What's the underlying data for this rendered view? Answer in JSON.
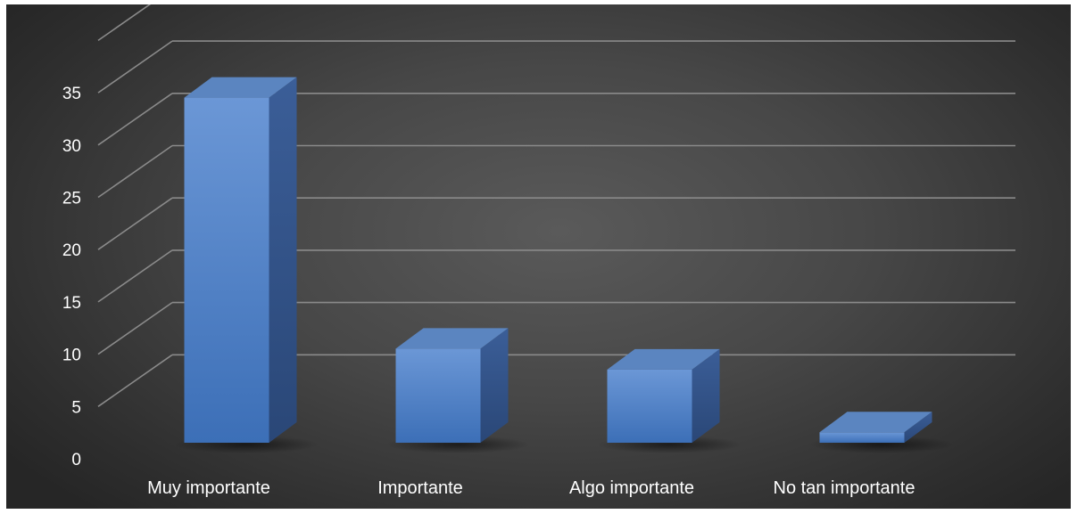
{
  "chart_data": {
    "type": "bar",
    "title": "",
    "xlabel": "",
    "ylabel": "",
    "categories": [
      "Muy importante",
      "Importante",
      "Algo importante",
      "No tan importante"
    ],
    "values": [
      33,
      9,
      7,
      1
    ],
    "ylim": [
      0,
      40
    ],
    "yticks": [
      0,
      5,
      10,
      15,
      20,
      25,
      30,
      35
    ],
    "grid": true,
    "legend": "none",
    "style": "3d-column",
    "colors": {
      "bar_front": "#4a7fc4",
      "bar_side": "#2f528a",
      "bar_top": "#5b85c0",
      "grid": "#8a8a8a",
      "text": "#ffffff",
      "background": "#474747"
    }
  }
}
